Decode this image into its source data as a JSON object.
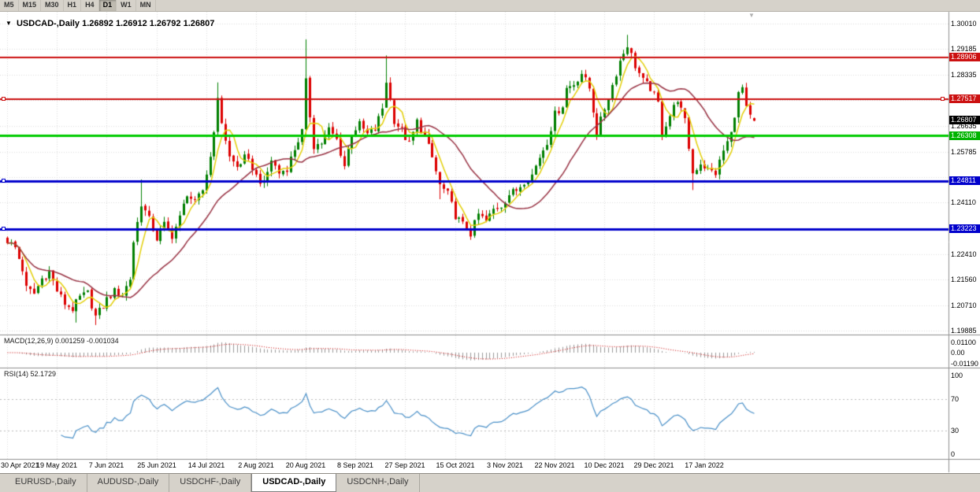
{
  "toolbar": {
    "timeframes": [
      {
        "label": "M5",
        "active": false
      },
      {
        "label": "M15",
        "active": false
      },
      {
        "label": "M30",
        "active": false
      },
      {
        "label": "H1",
        "active": false
      },
      {
        "label": "H4",
        "active": false
      },
      {
        "label": "D1",
        "active": true
      },
      {
        "label": "W1",
        "active": false
      },
      {
        "label": "MN",
        "active": false
      }
    ]
  },
  "header": {
    "collapse_icon": "▼",
    "symbol": "USDCAD-,Daily",
    "quote": "1.26892 1.26912 1.26792 1.26807"
  },
  "shift_marker_icon": "▼",
  "price_axis": {
    "ticks": [
      {
        "label": "1.30010",
        "value": 1.3001
      },
      {
        "label": "1.29185",
        "value": 1.29185
      },
      {
        "label": "1.28335",
        "value": 1.28335
      },
      {
        "label": "1.26635",
        "value": 1.26635
      },
      {
        "label": "1.25785",
        "value": 1.25785
      },
      {
        "label": "1.24110",
        "value": 1.2411
      },
      {
        "label": "1.22410",
        "value": 1.2241
      },
      {
        "label": "1.21560",
        "value": 1.2156
      },
      {
        "label": "1.20710",
        "value": 1.2071
      },
      {
        "label": "1.19885",
        "value": 1.19885
      }
    ],
    "grid_extra": [
      1.27485,
      1.2496,
      1.2326
    ],
    "line_labels": [
      {
        "label": "1.28906",
        "value": 1.28906,
        "bg": "#cc1111"
      },
      {
        "label": "1.27517",
        "value": 1.27517,
        "bg": "#cc1111"
      },
      {
        "label": "1.26807",
        "value": 1.26807,
        "bg": "#000000"
      },
      {
        "label": "1.26308",
        "value": 1.26308,
        "bg": "#00b400"
      },
      {
        "label": "1.24811",
        "value": 1.24811,
        "bg": "#0000cc"
      },
      {
        "label": "1.23223",
        "value": 1.23223,
        "bg": "#0000cc"
      }
    ]
  },
  "hlines": [
    {
      "value": 1.28906,
      "color": "#cc1111",
      "width": 2,
      "markers": "none"
    },
    {
      "value": 1.27517,
      "color": "#cc1111",
      "width": 2,
      "markers": "both"
    },
    {
      "value": 1.26308,
      "color": "#00cc00",
      "width": 3,
      "markers": "none"
    },
    {
      "value": 1.24811,
      "color": "#0000cc",
      "width": 3,
      "markers": "left"
    },
    {
      "value": 1.23223,
      "color": "#0000cc",
      "width": 3,
      "markers": "left"
    }
  ],
  "indicators": {
    "macd": {
      "label": "MACD(12,26,9) 0.001259 -0.001034",
      "fast": 12,
      "slow": 26,
      "signal": 9,
      "axis": [
        {
          "label": "0.01100",
          "value": 0.011
        },
        {
          "label": "0.00",
          "value": 0
        },
        {
          "label": "-0.01190",
          "value": -0.0119
        }
      ]
    },
    "rsi": {
      "label": "RSI(14) 52.1729",
      "period": 14,
      "levels": [
        70,
        30
      ],
      "axis": [
        {
          "label": "100",
          "value": 100
        },
        {
          "label": "70",
          "value": 70
        },
        {
          "label": "30",
          "value": 30
        },
        {
          "label": "0",
          "value": 0
        }
      ]
    }
  },
  "date_axis": {
    "labels": [
      "30 Apr 2021",
      "19 May 2021",
      "7 Jun 2021",
      "25 Jun 2021",
      "14 Jul 2021",
      "2 Aug 2021",
      "20 Aug 2021",
      "8 Sep 2021",
      "27 Sep 2021",
      "15 Oct 2021",
      "3 Nov 2021",
      "22 Nov 2021",
      "10 Dec 2021",
      "29 Dec 2021",
      "17 Jan 2022"
    ],
    "indices": [
      0,
      13,
      26,
      39,
      52,
      65,
      78,
      91,
      104,
      117,
      130,
      143,
      156,
      169,
      182
    ]
  },
  "tabs": [
    {
      "label": "EURUSD-,Daily",
      "active": false
    },
    {
      "label": "AUDUSD-,Daily",
      "active": false
    },
    {
      "label": "USDCHF-,Daily",
      "active": false
    },
    {
      "label": "USDCAD-,Daily",
      "active": true
    },
    {
      "label": "USDCNH-,Daily",
      "active": false
    }
  ],
  "chart_data": {
    "type": "candlestick",
    "symbol": "USDCAD-",
    "timeframe": "Daily",
    "bars": 196,
    "ohlc_display": {
      "open": 1.26892,
      "high": 1.26912,
      "low": 1.26792,
      "close": 1.26807
    },
    "price_range": {
      "top_tick": 1.3001,
      "bottom_tick": 1.19885
    },
    "colors": {
      "up": "#007f00",
      "down": "#dd0000",
      "grid": "#dcdcdc",
      "separator": "#8f8f8f",
      "macd_hist": "#9a9a9a",
      "macd_signal": "#cc0000",
      "rsi_line": "#4a90c8",
      "levels": "#bbbbbb"
    },
    "moving_averages": [
      {
        "period": 5,
        "color": "#e3cf08"
      },
      {
        "period": 21,
        "color": "#993344"
      }
    ],
    "anchors": [
      [
        0,
        1.2285
      ],
      [
        2,
        1.2262
      ],
      [
        4,
        1.219
      ],
      [
        5,
        1.2128
      ],
      [
        7,
        1.211
      ],
      [
        9,
        1.216
      ],
      [
        11,
        1.2182
      ],
      [
        13,
        1.212
      ],
      [
        15,
        1.2078
      ],
      [
        17,
        1.206
      ],
      [
        19,
        1.2098
      ],
      [
        21,
        1.2112
      ],
      [
        23,
        1.2035
      ],
      [
        25,
        1.207
      ],
      [
        26,
        1.2092
      ],
      [
        28,
        1.2118
      ],
      [
        30,
        1.2108
      ],
      [
        32,
        1.216
      ],
      [
        33,
        1.2282
      ],
      [
        35,
        1.2408
      ],
      [
        37,
        1.2355
      ],
      [
        39,
        1.2292
      ],
      [
        41,
        1.2338
      ],
      [
        43,
        1.2302
      ],
      [
        45,
        1.236
      ],
      [
        47,
        1.2442
      ],
      [
        49,
        1.2408
      ],
      [
        51,
        1.2452
      ],
      [
        53,
        1.2562
      ],
      [
        55,
        1.2745
      ],
      [
        56,
        1.2678
      ],
      [
        58,
        1.256
      ],
      [
        60,
        1.2528
      ],
      [
        62,
        1.2558
      ],
      [
        64,
        1.2528
      ],
      [
        65,
        1.2498
      ],
      [
        67,
        1.247
      ],
      [
        69,
        1.2552
      ],
      [
        71,
        1.2508
      ],
      [
        73,
        1.2525
      ],
      [
        75,
        1.2588
      ],
      [
        77,
        1.2645
      ],
      [
        78,
        1.2808
      ],
      [
        79,
        1.2698
      ],
      [
        80,
        1.2598
      ],
      [
        82,
        1.2608
      ],
      [
        84,
        1.2652
      ],
      [
        86,
        1.2618
      ],
      [
        88,
        1.2532
      ],
      [
        90,
        1.2642
      ],
      [
        92,
        1.2668
      ],
      [
        94,
        1.2635
      ],
      [
        96,
        1.2652
      ],
      [
        98,
        1.2722
      ],
      [
        99,
        1.2812
      ],
      [
        101,
        1.2682
      ],
      [
        103,
        1.2648
      ],
      [
        105,
        1.2602
      ],
      [
        107,
        1.2678
      ],
      [
        109,
        1.2628
      ],
      [
        111,
        1.2558
      ],
      [
        113,
        1.2468
      ],
      [
        115,
        1.2438
      ],
      [
        117,
        1.2368
      ],
      [
        119,
        1.2338
      ],
      [
        121,
        1.2308
      ],
      [
        123,
        1.2372
      ],
      [
        125,
        1.2348
      ],
      [
        127,
        1.2388
      ],
      [
        129,
        1.2402
      ],
      [
        131,
        1.2438
      ],
      [
        133,
        1.2452
      ],
      [
        135,
        1.2482
      ],
      [
        137,
        1.2502
      ],
      [
        139,
        1.2562
      ],
      [
        141,
        1.2612
      ],
      [
        143,
        1.2702
      ],
      [
        145,
        1.2732
      ],
      [
        146,
        1.2788
      ],
      [
        148,
        1.2802
      ],
      [
        150,
        1.2838
      ],
      [
        152,
        1.2788
      ],
      [
        154,
        1.2642
      ],
      [
        156,
        1.2722
      ],
      [
        158,
        1.2798
      ],
      [
        160,
        1.2878
      ],
      [
        162,
        1.2932
      ],
      [
        164,
        1.2862
      ],
      [
        166,
        1.2812
      ],
      [
        168,
        1.2788
      ],
      [
        170,
        1.2738
      ],
      [
        171,
        1.2642
      ],
      [
        173,
        1.2698
      ],
      [
        175,
        1.2752
      ],
      [
        177,
        1.2678
      ],
      [
        179,
        1.2508
      ],
      [
        181,
        1.2542
      ],
      [
        183,
        1.2518
      ],
      [
        185,
        1.2508
      ],
      [
        187,
        1.2582
      ],
      [
        189,
        1.2638
      ],
      [
        191,
        1.2768
      ],
      [
        192,
        1.2788
      ],
      [
        193,
        1.2718
      ],
      [
        194,
        1.2692
      ],
      [
        195,
        1.26807
      ]
    ],
    "wick_overrides": {
      "18": {
        "low": 1.2015
      },
      "23": {
        "low": 1.2007
      },
      "35": {
        "high": 1.2487
      },
      "55": {
        "high": 1.2807
      },
      "78": {
        "high": 1.2949
      },
      "99": {
        "high": 1.2896
      },
      "113": {
        "low": 1.2422
      },
      "121": {
        "low": 1.2288
      },
      "151": {
        "high": 1.2846
      },
      "162": {
        "high": 1.2964
      },
      "179": {
        "low": 1.2452
      },
      "192": {
        "high": 1.2796
      }
    }
  }
}
